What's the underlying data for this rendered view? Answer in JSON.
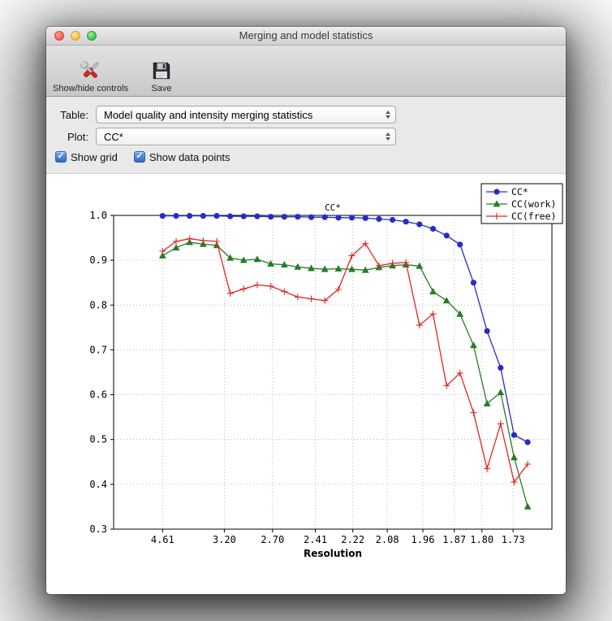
{
  "window": {
    "title": "Merging and model statistics",
    "buttons": [
      "close",
      "minimize",
      "zoom"
    ]
  },
  "toolbar": {
    "buttons": [
      {
        "label": "Show/hide controls",
        "icon": "tools-icon"
      },
      {
        "label": "Save",
        "icon": "save-icon"
      }
    ]
  },
  "controls": {
    "table": {
      "label": "Table:",
      "value": "Model quality and intensity merging statistics"
    },
    "plot": {
      "label": "Plot:",
      "value": "CC*"
    },
    "checkboxes": [
      {
        "label": "Show grid",
        "checked": true
      },
      {
        "label": "Show data points",
        "checked": true
      }
    ]
  },
  "chart_data": {
    "type": "line",
    "title": "CC*",
    "xlabel": "Resolution",
    "ylabel": "",
    "grid": true,
    "legend_position": "upper right",
    "x_axis": {
      "unit": "1/d^2",
      "min": 0.007,
      "max": 0.366,
      "ticks": [
        {
          "label": "4.61",
          "x": 0.0471
        },
        {
          "label": "3.20",
          "x": 0.0977
        },
        {
          "label": "2.70",
          "x": 0.1372
        },
        {
          "label": "2.41",
          "x": 0.1722
        },
        {
          "label": "2.22",
          "x": 0.2029
        },
        {
          "label": "2.08",
          "x": 0.2311
        },
        {
          "label": "1.96",
          "x": 0.2603
        },
        {
          "label": "1.87",
          "x": 0.286
        },
        {
          "label": "1.80",
          "x": 0.3086
        },
        {
          "label": "1.73",
          "x": 0.3342
        }
      ]
    },
    "y_axis": {
      "min": 0.3,
      "max": 1.0,
      "ticks": [
        1.0,
        0.9,
        0.8,
        0.7,
        0.6,
        0.5,
        0.4,
        0.3
      ]
    },
    "x": [
      0.0471,
      0.0582,
      0.0692,
      0.0803,
      0.0914,
      0.1025,
      0.1135,
      0.1246,
      0.1357,
      0.1468,
      0.1578,
      0.1689,
      0.18,
      0.1911,
      0.2021,
      0.2132,
      0.2243,
      0.2354,
      0.2464,
      0.2575,
      0.2686,
      0.2797,
      0.2907,
      0.3018,
      0.3129,
      0.324,
      0.335,
      0.3461
    ],
    "series": [
      {
        "name": "CC*",
        "color": "#2a2ac8",
        "marker": "circle",
        "values": [
          0.999,
          0.999,
          0.999,
          0.999,
          0.999,
          0.998,
          0.998,
          0.998,
          0.997,
          0.997,
          0.997,
          0.996,
          0.996,
          0.995,
          0.995,
          0.994,
          0.992,
          0.99,
          0.986,
          0.98,
          0.97,
          0.955,
          0.935,
          0.85,
          0.742,
          0.66,
          0.51,
          0.494
        ]
      },
      {
        "name": "CC(work)",
        "color": "#257c25",
        "marker": "triangle",
        "values": [
          0.91,
          0.928,
          0.94,
          0.936,
          0.933,
          0.905,
          0.9,
          0.902,
          0.892,
          0.89,
          0.885,
          0.882,
          0.88,
          0.881,
          0.88,
          0.878,
          0.884,
          0.888,
          0.89,
          0.887,
          0.83,
          0.81,
          0.78,
          0.71,
          0.58,
          0.605,
          0.46,
          0.35
        ]
      },
      {
        "name": "CC(free)",
        "color": "#e22424",
        "marker": "plus",
        "values": [
          0.92,
          0.942,
          0.948,
          0.944,
          0.942,
          0.826,
          0.836,
          0.845,
          0.842,
          0.83,
          0.818,
          0.814,
          0.81,
          0.835,
          0.91,
          0.937,
          0.888,
          0.893,
          0.895,
          0.755,
          0.78,
          0.62,
          0.648,
          0.56,
          0.435,
          0.535,
          0.405,
          0.445
        ]
      }
    ]
  }
}
